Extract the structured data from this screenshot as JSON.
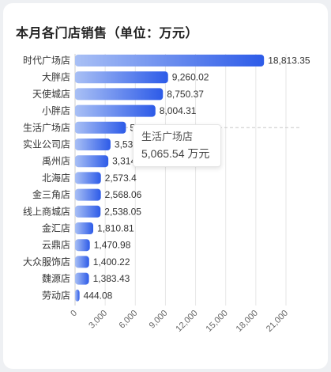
{
  "title": "本月各门店销售（单位：万元）",
  "chart_data": {
    "type": "bar",
    "orientation": "horizontal",
    "categories": [
      "时代广场店",
      "大胖店",
      "天使城店",
      "小胖店",
      "生活广场店",
      "实业公司店",
      "禹州店",
      "北海店",
      "金三角店",
      "线上商城店",
      "金汇店",
      "云鼎店",
      "大众服饰店",
      "魏源店",
      "劳动店"
    ],
    "values": [
      18813.35,
      9260.02,
      8750.37,
      8004.31,
      5065.54,
      3533,
      3314,
      2573.4,
      2568.06,
      2538.05,
      1810.81,
      1470.98,
      1400.22,
      1383.43,
      444.08
    ],
    "value_labels": [
      "18,813.35",
      "9,260.02",
      "8,750.37",
      "8,004.31",
      "5,065.54",
      "3,533",
      "3,314",
      "2,573.4",
      "2,568.06",
      "2,538.05",
      "1,810.81",
      "1,470.98",
      "1,400.22",
      "1,383.43",
      "444.08"
    ],
    "xlim": [
      0,
      21000
    ],
    "xticks": [
      "0",
      "3,000",
      "6,000",
      "9,000",
      "12,000",
      "15,000",
      "18,000",
      "21,000"
    ],
    "bar_color_start": "#a9c0f5",
    "bar_color_end": "#2d5be8",
    "grid": true,
    "highlighted_index": 4
  },
  "tooltip": {
    "name": "生活广场店",
    "value": "5,065.54 万元"
  }
}
